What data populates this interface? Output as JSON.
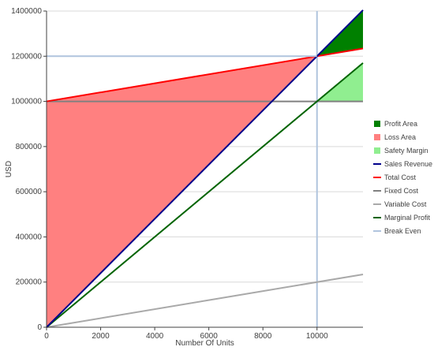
{
  "chart_data": {
    "type": "area",
    "xlabel": "Number Of Units",
    "ylabel": "USD",
    "xlim": [
      0,
      11700
    ],
    "ylim": [
      0,
      1400000
    ],
    "x_ticks": [
      0,
      2000,
      4000,
      6000,
      8000,
      10000
    ],
    "y_ticks": [
      0,
      200000,
      400000,
      600000,
      800000,
      1000000,
      1200000,
      1400000
    ],
    "x_tick_labels": [
      "0",
      "2000",
      "4000",
      "6000",
      "8000",
      "10000"
    ],
    "y_tick_labels": [
      "0",
      "200000",
      "400000",
      "600000",
      "800000",
      "1000000",
      "1200000",
      "1400000"
    ],
    "grid": "horizontal",
    "legend_position": "right",
    "break_even": {
      "x": 10000,
      "y": 1200000
    },
    "series": [
      {
        "name": "Profit Area",
        "kind": "area",
        "color": "#008000",
        "x": [
          10000,
          11700,
          11700
        ],
        "y": [
          1200000,
          1404000,
          1234000
        ]
      },
      {
        "name": "Loss Area",
        "kind": "area",
        "color": "#ff8080",
        "x": [
          0,
          10000,
          0
        ],
        "y": [
          0,
          1200000,
          1000000
        ]
      },
      {
        "name": "Safety Margin",
        "kind": "area",
        "color": "#90ee90",
        "x": [
          10000,
          11700,
          11700
        ],
        "y": [
          1000000,
          1170000,
          1000000
        ]
      },
      {
        "name": "Sales Revenue",
        "kind": "line",
        "color": "#00008b",
        "x": [
          0,
          11700
        ],
        "y": [
          0,
          1404000
        ]
      },
      {
        "name": "Total Cost",
        "kind": "line",
        "color": "#ff0000",
        "x": [
          0,
          11700
        ],
        "y": [
          1000000,
          1234000
        ]
      },
      {
        "name": "Fixed Cost",
        "kind": "line",
        "color": "#808080",
        "x": [
          0,
          11700
        ],
        "y": [
          1000000,
          1000000
        ]
      },
      {
        "name": "Variable Cost",
        "kind": "line",
        "color": "#a9a9a9",
        "x": [
          0,
          11700
        ],
        "y": [
          0,
          234000
        ]
      },
      {
        "name": "Marginal Profit",
        "kind": "line",
        "color": "#006400",
        "x": [
          0,
          11700
        ],
        "y": [
          0,
          1170000
        ]
      },
      {
        "name": "Break Even",
        "kind": "line",
        "color": "#b0c4de",
        "x": [
          10000,
          10000
        ],
        "y": [
          0,
          1400000
        ]
      }
    ]
  }
}
